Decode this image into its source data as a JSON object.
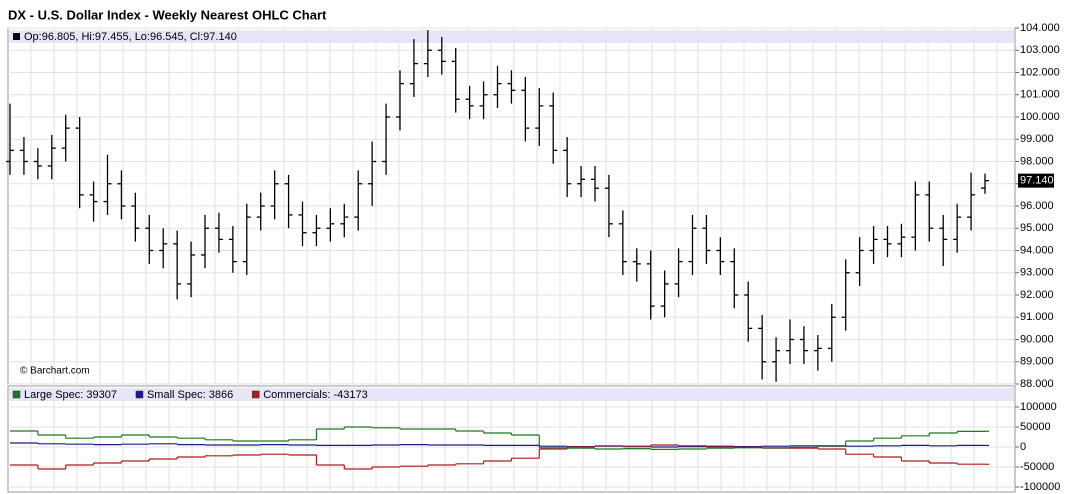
{
  "chart_data": [
    {
      "type": "ohlc",
      "title": "DX - U.S. Dollar Index - Weekly Nearest OHLC Chart",
      "info": "Op:96.805, Hi:97.455, Lo:96.545, Cl:97.140",
      "credit": "© Barchart.com",
      "color": "#000000",
      "open": [
        98.0,
        98.5,
        98.0,
        97.8,
        98.6,
        99.5,
        96.5,
        96.2,
        97.0,
        96.0,
        95.0,
        94.0,
        94.3,
        92.5,
        93.8,
        95.0,
        94.5,
        93.5,
        95.5,
        96.0,
        97.0,
        95.6,
        94.8,
        95.0,
        95.2,
        95.5,
        97.0,
        98.0,
        100.0,
        101.5,
        102.4,
        103.0,
        102.5,
        100.8,
        100.5,
        101.0,
        101.5,
        101.2,
        99.5,
        100.5,
        98.5,
        97.0,
        97.2,
        96.8,
        95.2,
        93.5,
        93.4,
        91.5,
        92.5,
        93.5,
        95.0,
        94.0,
        93.5,
        92.0,
        90.5,
        89.0,
        89.5,
        90.0,
        89.5,
        89.6,
        91.0,
        93.0,
        94.0,
        94.5,
        94.3,
        94.6,
        96.5,
        95.0,
        94.5,
        95.5,
        96.805
      ],
      "high": [
        100.6,
        99.1,
        98.6,
        99.2,
        100.1,
        100.0,
        97.1,
        98.3,
        97.6,
        96.6,
        95.6,
        95.0,
        94.9,
        94.4,
        95.6,
        95.7,
        95.1,
        96.1,
        96.6,
        97.6,
        97.4,
        96.2,
        95.6,
        95.9,
        96.1,
        97.6,
        98.9,
        100.6,
        102.1,
        103.5,
        103.9,
        103.6,
        103.1,
        101.4,
        101.6,
        102.3,
        102.1,
        101.8,
        101.3,
        101.1,
        99.1,
        97.8,
        97.8,
        97.4,
        95.8,
        94.1,
        94.0,
        93.1,
        94.1,
        95.6,
        95.6,
        94.6,
        94.1,
        92.6,
        91.1,
        90.1,
        90.9,
        90.6,
        90.2,
        91.6,
        93.6,
        94.6,
        95.1,
        95.1,
        95.2,
        97.1,
        97.1,
        95.6,
        96.1,
        97.5,
        97.455
      ],
      "low": [
        97.4,
        97.4,
        97.2,
        97.2,
        98.0,
        95.9,
        95.3,
        95.6,
        95.4,
        94.4,
        93.4,
        93.2,
        91.8,
        91.9,
        93.2,
        93.9,
        93.0,
        92.9,
        94.9,
        95.4,
        95.0,
        94.2,
        94.2,
        94.4,
        94.6,
        94.9,
        96.0,
        97.4,
        99.4,
        100.9,
        101.8,
        101.9,
        100.2,
        99.9,
        99.9,
        100.4,
        100.6,
        98.9,
        98.7,
        97.9,
        96.4,
        96.4,
        96.2,
        94.6,
        92.9,
        92.6,
        90.9,
        91.0,
        91.9,
        92.9,
        93.4,
        92.9,
        91.4,
        89.9,
        88.2,
        88.1,
        88.9,
        88.9,
        88.6,
        89.0,
        90.4,
        92.4,
        93.4,
        93.7,
        93.7,
        94.0,
        94.4,
        93.3,
        93.9,
        94.9,
        96.545
      ],
      "close": [
        98.5,
        98.0,
        97.8,
        98.6,
        99.5,
        96.5,
        96.2,
        97.0,
        96.0,
        95.0,
        94.0,
        94.3,
        92.5,
        93.8,
        95.0,
        94.5,
        93.5,
        95.5,
        96.0,
        97.0,
        95.6,
        94.8,
        95.0,
        95.2,
        95.5,
        97.0,
        98.0,
        100.0,
        101.5,
        102.4,
        103.0,
        102.5,
        100.8,
        100.5,
        101.0,
        101.5,
        101.2,
        99.5,
        100.5,
        98.5,
        97.0,
        97.2,
        96.8,
        95.2,
        93.5,
        93.4,
        91.5,
        92.5,
        93.5,
        95.0,
        94.0,
        93.5,
        92.0,
        90.5,
        89.0,
        89.5,
        90.0,
        89.5,
        89.6,
        91.0,
        93.0,
        94.0,
        94.5,
        94.3,
        94.6,
        96.5,
        95.0,
        94.5,
        95.5,
        96.5,
        97.14
      ],
      "last_price": {
        "value": 97.14,
        "label": "97.140"
      },
      "ylim": [
        88,
        104
      ],
      "yticks": [
        {
          "value": 88,
          "label": "88.000"
        },
        {
          "value": 89,
          "label": "89.000"
        },
        {
          "value": 90,
          "label": "90.000"
        },
        {
          "value": 91,
          "label": "91.000"
        },
        {
          "value": 92,
          "label": "92.000"
        },
        {
          "value": 93,
          "label": "93.000"
        },
        {
          "value": 94,
          "label": "94.000"
        },
        {
          "value": 95,
          "label": "95.000"
        },
        {
          "value": 96,
          "label": "96.000"
        },
        {
          "value": 97,
          "label": "97.000"
        },
        {
          "value": 98,
          "label": "98.000"
        },
        {
          "value": 99,
          "label": "99.000"
        },
        {
          "value": 100,
          "label": "100.000"
        },
        {
          "value": 101,
          "label": "101.000"
        },
        {
          "value": 102,
          "label": "102.000"
        },
        {
          "value": 103,
          "label": "103.000"
        },
        {
          "value": 104,
          "label": "104.000"
        }
      ],
      "grid": true
    },
    {
      "type": "step",
      "series": [
        {
          "name": "Large Spec: 39307",
          "color": "#1a7a1a",
          "values": [
            40000,
            30000,
            22000,
            25000,
            30000,
            25000,
            22000,
            18000,
            15000,
            15000,
            18000,
            45000,
            50000,
            48000,
            45000,
            45000,
            40000,
            35000,
            30000,
            -2000,
            -3000,
            -5000,
            -4000,
            -6000,
            -5000,
            -3000,
            -2000,
            -3000,
            -1000,
            2000,
            15000,
            22000,
            28000,
            35000,
            39000,
            39307
          ]
        },
        {
          "name": "Small Spec: 3866",
          "color": "#1a1a8a",
          "values": [
            10000,
            8000,
            7000,
            6000,
            7000,
            8000,
            6000,
            5000,
            5000,
            6000,
            5000,
            4000,
            4000,
            5000,
            6000,
            5000,
            5000,
            4000,
            4000,
            2000,
            1000,
            2000,
            1000,
            0,
            1000,
            2000,
            1000,
            2000,
            3000,
            3000,
            2000,
            3000,
            4000,
            3000,
            4000,
            3866
          ]
        },
        {
          "name": "Commercials: -43173",
          "color": "#b01a1a",
          "values": [
            -45000,
            -55000,
            -45000,
            -40000,
            -35000,
            -30000,
            -25000,
            -22000,
            -20000,
            -18000,
            -20000,
            -45000,
            -55000,
            -50000,
            -48000,
            -45000,
            -42000,
            -35000,
            -28000,
            -5000,
            0,
            3000,
            2000,
            5000,
            3000,
            0,
            -1000,
            -2000,
            -3000,
            -5000,
            -18000,
            -25000,
            -35000,
            -40000,
            -43000,
            -43173
          ]
        }
      ],
      "ylim": [
        -100000,
        100000
      ],
      "yticks": [
        -100000,
        -50000,
        0,
        50000,
        100000
      ],
      "grid": true
    }
  ]
}
